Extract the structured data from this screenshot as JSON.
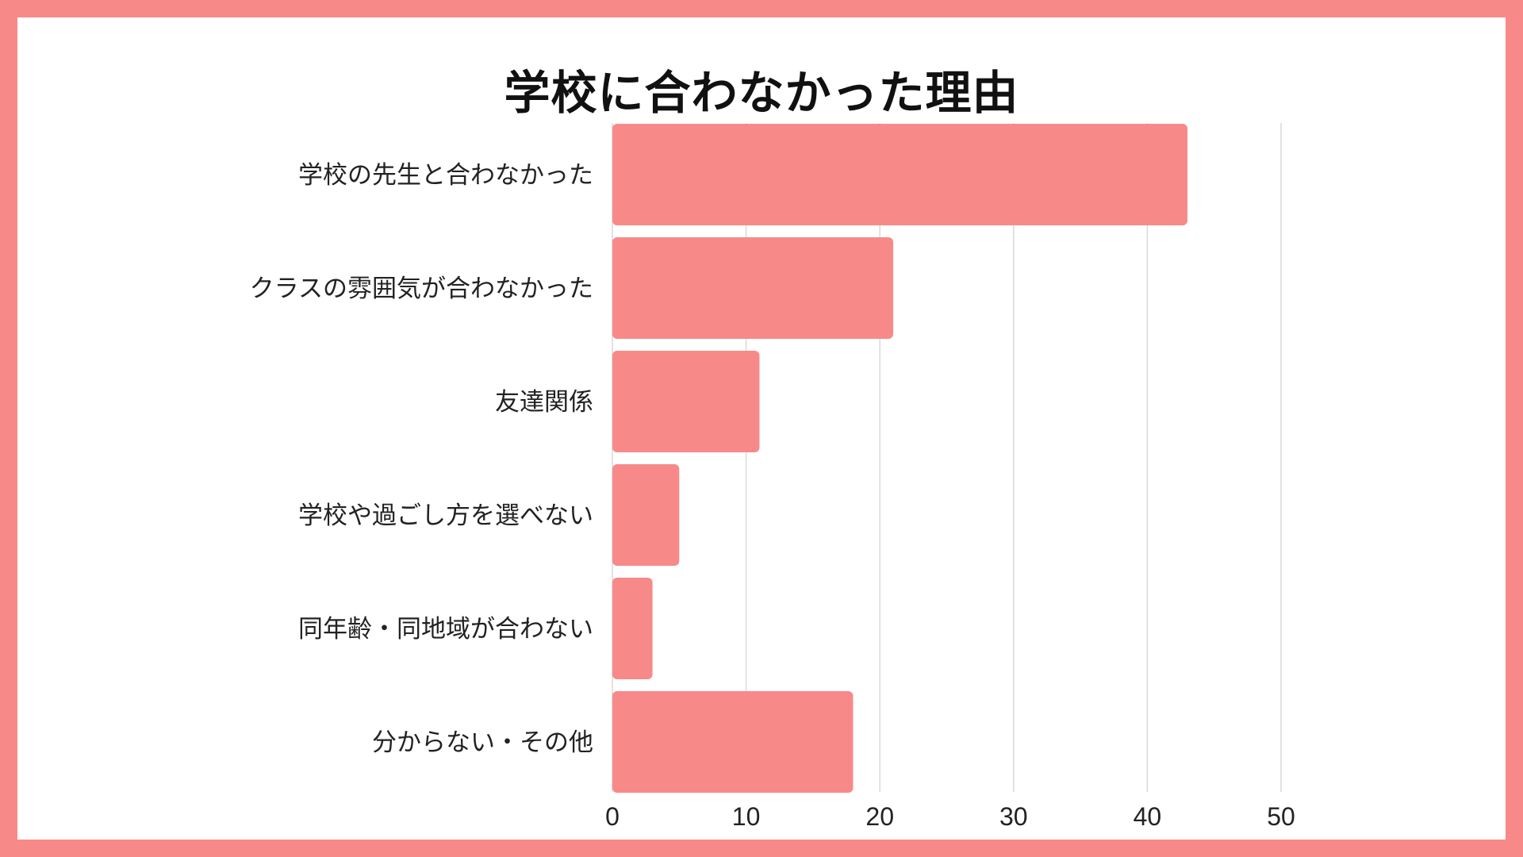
{
  "chart_data": {
    "type": "bar",
    "orientation": "horizontal",
    "title": "学校に合わなかった理由",
    "xlabel": "",
    "ylabel": "",
    "categories": [
      "学校の先生と合わなかった",
      "クラスの雰囲気が合わなかった",
      "友達関係",
      "学校や過ごし方を選べない",
      "同年齢・同地域が合わない",
      "分からない・その他"
    ],
    "values": [
      43,
      21,
      11,
      5,
      3,
      18
    ],
    "xlim": [
      0,
      50
    ],
    "ticks": [
      "0",
      "10",
      "20",
      "30",
      "40",
      "50"
    ],
    "tick_values": [
      0,
      10,
      20,
      30,
      40,
      50
    ],
    "grid": "vertical",
    "legend": "none",
    "colors": {
      "bar": "#f78a89",
      "frame": "#f78a89",
      "grid": "#d9d9d9",
      "text": "#222222"
    }
  }
}
